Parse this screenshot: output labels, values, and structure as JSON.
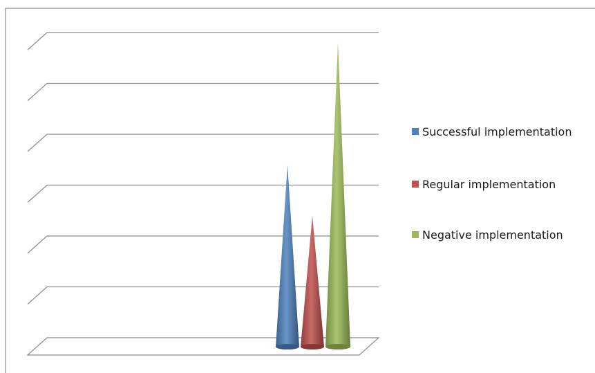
{
  "chart_data": {
    "type": "bar",
    "shape": "3d-cone",
    "title": "",
    "xlabel": "",
    "ylabel": "",
    "ylim": [
      0,
      6
    ],
    "grid": true,
    "tick_labels_shown": false,
    "legend_position": "right",
    "series": [
      {
        "name": "Successful implementation",
        "color": "#4f81bd",
        "value": 3.4
      },
      {
        "name": "Regular implementation",
        "color": "#c0504d",
        "value": 2.4
      },
      {
        "name": "Negative implementation",
        "color": "#9bbb59",
        "value": 5.8
      }
    ]
  }
}
